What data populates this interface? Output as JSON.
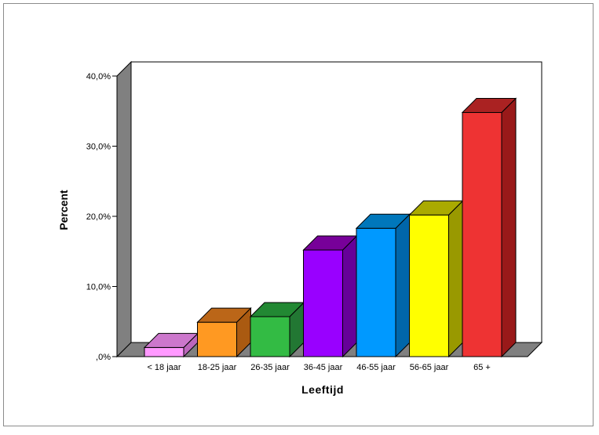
{
  "chart_data": {
    "type": "bar",
    "style": "3d",
    "title": "",
    "xlabel": "Leeftijd",
    "ylabel": "Percent",
    "categories": [
      "< 18 jaar",
      "18-25 jaar",
      "26-35 jaar",
      "36-45 jaar",
      "46-55 jaar",
      "56-65 jaar",
      "65 +"
    ],
    "values": [
      1.3,
      4.9,
      5.7,
      15.2,
      18.3,
      20.2,
      34.8
    ],
    "ylim": [
      0,
      40
    ],
    "yticks": [
      0,
      10,
      20,
      30,
      40
    ],
    "ytick_labels": [
      ",0%",
      "10,0%",
      "20,0%",
      "30,0%",
      "40,0%"
    ],
    "grid": false,
    "legend": "none",
    "colors": {
      "fronts": [
        "#ff99ff",
        "#ff9922",
        "#33bb44",
        "#9900ff",
        "#0099ff",
        "#ffff00",
        "#ee3333"
      ],
      "sides": [
        "#bb66bb",
        "#aa5a11",
        "#227733",
        "#660099",
        "#0066aa",
        "#999900",
        "#991919"
      ],
      "tops": [
        "#cc77cc",
        "#bb6618",
        "#228833",
        "#770099",
        "#0077bb",
        "#aaaa00",
        "#aa2222"
      ],
      "walls": "#808080"
    }
  }
}
